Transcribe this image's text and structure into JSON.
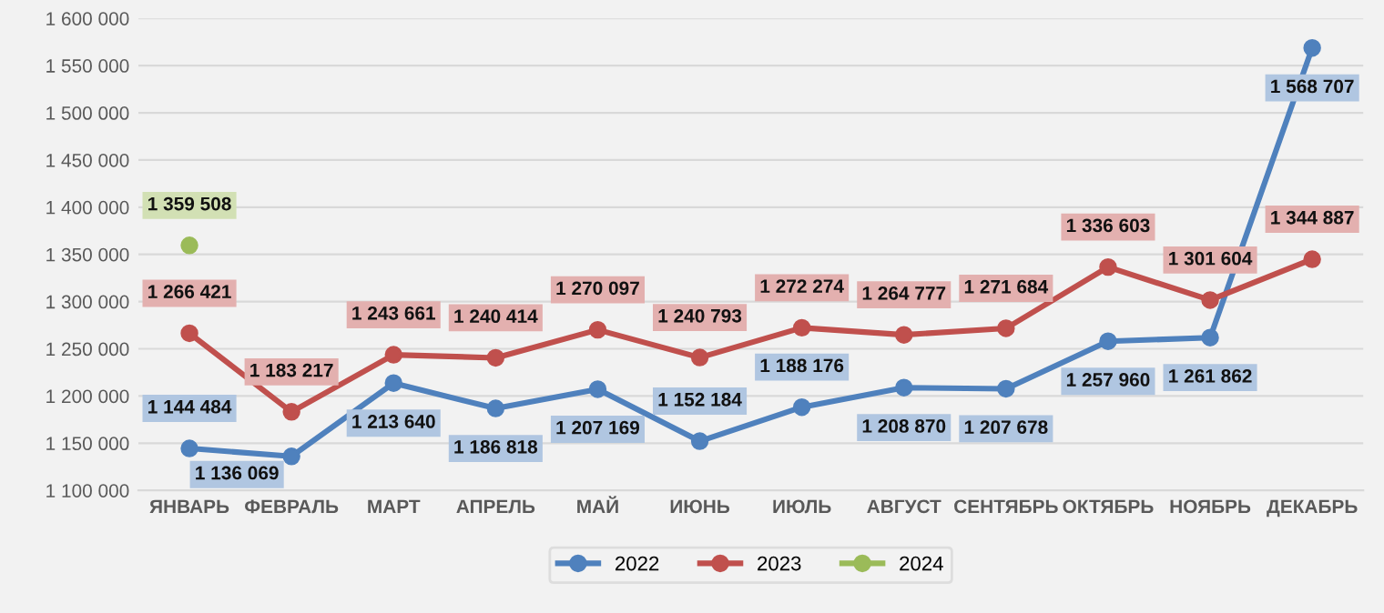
{
  "chart_data": {
    "type": "line",
    "categories": [
      "ЯНВАРЬ",
      "ФЕВРАЛЬ",
      "МАРТ",
      "АПРЕЛЬ",
      "МАЙ",
      "ИЮНЬ",
      "ИЮЛЬ",
      "АВГУСТ",
      "СЕНТЯБРЬ",
      "ОКТЯБРЬ",
      "НОЯБРЬ",
      "ДЕКАБРЬ"
    ],
    "series": [
      {
        "name": "2022",
        "color": "#4f81bd",
        "values": [
          1144484,
          1136069,
          1213640,
          1186818,
          1207169,
          1152184,
          1188176,
          1208870,
          1207678,
          1257960,
          1261862,
          1568707
        ],
        "value_labels": [
          "1 144 484",
          "1 136 069",
          "1 213 640",
          "1 186 818",
          "1 207 169",
          "1 152 184",
          "1 188 176",
          "1 208 870",
          "1 207 678",
          "1 257 960",
          "1 261 862",
          "1 568 707"
        ]
      },
      {
        "name": "2023",
        "color": "#c0504d",
        "values": [
          1266421,
          1183217,
          1243661,
          1240414,
          1270097,
          1240793,
          1272274,
          1264777,
          1271684,
          1336603,
          1301604,
          1344887
        ],
        "value_labels": [
          "1 266 421",
          "1 183 217",
          "1 243 661",
          "1 240 414",
          "1 270 097",
          "1 240 793",
          "1 272 274",
          "1 264 777",
          "1 271 684",
          "1 336 603",
          "1 301 604",
          "1 344 887"
        ]
      },
      {
        "name": "2024",
        "color": "#9bbb59",
        "values": [
          1359508,
          null,
          null,
          null,
          null,
          null,
          null,
          null,
          null,
          null,
          null,
          null
        ],
        "value_labels": [
          "1 359 508",
          null,
          null,
          null,
          null,
          null,
          null,
          null,
          null,
          null,
          null,
          null
        ]
      }
    ],
    "ylim": [
      1100000,
      1600000
    ],
    "yticks": [
      {
        "value": 1100000,
        "label": "1 100 000"
      },
      {
        "value": 1150000,
        "label": "1 150 000"
      },
      {
        "value": 1200000,
        "label": "1 200 000"
      },
      {
        "value": 1250000,
        "label": "1 250 000"
      },
      {
        "value": 1300000,
        "label": "1 300 000"
      },
      {
        "value": 1350000,
        "label": "1 350 000"
      },
      {
        "value": 1400000,
        "label": "1 400 000"
      },
      {
        "value": 1450000,
        "label": "1 450 000"
      },
      {
        "value": 1500000,
        "label": "1 500 000"
      },
      {
        "value": 1550000,
        "label": "1 550 000"
      },
      {
        "value": 1600000,
        "label": "1 600 000"
      }
    ],
    "grid": "y",
    "legend": "bottom",
    "marker": "circle",
    "line_style": "solid"
  }
}
